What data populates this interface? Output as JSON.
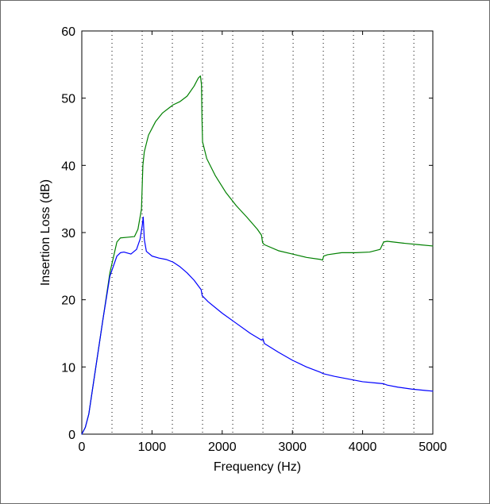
{
  "chart_data": {
    "type": "line",
    "title": "",
    "xlabel": "Frequency (Hz)",
    "ylabel": "Insertion Loss (dB)",
    "xlim": [
      0,
      5000
    ],
    "ylim": [
      0,
      60
    ],
    "xticks": [
      0,
      1000,
      2000,
      3000,
      4000,
      5000
    ],
    "yticks": [
      0,
      10,
      20,
      30,
      40,
      50,
      60
    ],
    "xtick_labels": [
      "0",
      "1000",
      "2000",
      "3000",
      "4000",
      "5000"
    ],
    "ytick_labels": [
      "0",
      "10",
      "20",
      "30",
      "40",
      "50",
      "60"
    ],
    "vertical_dotted_gridlines_x": [
      430,
      860,
      1290,
      1720,
      2150,
      2580,
      3010,
      3440,
      3870,
      4300,
      4730
    ],
    "grid": "vertical dotted lines only",
    "legend": "none",
    "series": [
      {
        "color": "#008000",
        "points": [
          [
            0,
            0
          ],
          [
            50,
            1
          ],
          [
            100,
            3
          ],
          [
            200,
            10
          ],
          [
            300,
            17
          ],
          [
            400,
            24
          ],
          [
            500,
            28.6
          ],
          [
            550,
            29.2
          ],
          [
            650,
            29.3
          ],
          [
            750,
            29.4
          ],
          [
            800,
            30.5
          ],
          [
            850,
            33.5
          ],
          [
            870,
            40
          ],
          [
            890,
            42
          ],
          [
            950,
            44.5
          ],
          [
            1050,
            46.5
          ],
          [
            1150,
            47.8
          ],
          [
            1250,
            48.6
          ],
          [
            1300,
            49
          ],
          [
            1400,
            49.5
          ],
          [
            1500,
            50.3
          ],
          [
            1600,
            51.8
          ],
          [
            1660,
            53
          ],
          [
            1690,
            53.3
          ],
          [
            1705,
            52
          ],
          [
            1712,
            47
          ],
          [
            1720,
            43.5
          ],
          [
            1780,
            41
          ],
          [
            1900,
            38.5
          ],
          [
            2050,
            36
          ],
          [
            2200,
            34
          ],
          [
            2350,
            32.3
          ],
          [
            2500,
            30.5
          ],
          [
            2560,
            29.6
          ],
          [
            2575,
            28.5
          ],
          [
            2600,
            28.2
          ],
          [
            2800,
            27.3
          ],
          [
            3000,
            26.8
          ],
          [
            3200,
            26.3
          ],
          [
            3400,
            26
          ],
          [
            3430,
            25.9
          ],
          [
            3445,
            26.5
          ],
          [
            3500,
            26.7
          ],
          [
            3700,
            27
          ],
          [
            3900,
            27
          ],
          [
            4100,
            27.1
          ],
          [
            4250,
            27.5
          ],
          [
            4300,
            28.6
          ],
          [
            4350,
            28.7
          ],
          [
            4600,
            28.4
          ],
          [
            4800,
            28.2
          ],
          [
            5000,
            28
          ]
        ]
      },
      {
        "color": "#0000ff",
        "points": [
          [
            0,
            0
          ],
          [
            50,
            1
          ],
          [
            100,
            3
          ],
          [
            200,
            10
          ],
          [
            300,
            17
          ],
          [
            400,
            23.5
          ],
          [
            500,
            26.5
          ],
          [
            550,
            27
          ],
          [
            600,
            27.1
          ],
          [
            700,
            26.8
          ],
          [
            780,
            27.5
          ],
          [
            830,
            29
          ],
          [
            860,
            31
          ],
          [
            875,
            32.3
          ],
          [
            890,
            29
          ],
          [
            920,
            27.2
          ],
          [
            1000,
            26.5
          ],
          [
            1100,
            26.2
          ],
          [
            1200,
            26
          ],
          [
            1300,
            25.6
          ],
          [
            1400,
            24.9
          ],
          [
            1500,
            24
          ],
          [
            1600,
            22.9
          ],
          [
            1700,
            21.5
          ],
          [
            1715,
            20.6
          ],
          [
            1800,
            19.7
          ],
          [
            2000,
            18
          ],
          [
            2200,
            16.5
          ],
          [
            2400,
            15
          ],
          [
            2560,
            14
          ],
          [
            2580,
            14.2
          ],
          [
            2600,
            13.5
          ],
          [
            2800,
            12.2
          ],
          [
            3000,
            11
          ],
          [
            3200,
            10
          ],
          [
            3400,
            9.2
          ],
          [
            3440,
            9
          ],
          [
            3600,
            8.6
          ],
          [
            3800,
            8.2
          ],
          [
            4000,
            7.8
          ],
          [
            4200,
            7.6
          ],
          [
            4300,
            7.5
          ],
          [
            4350,
            7.3
          ],
          [
            4500,
            7
          ],
          [
            4700,
            6.7
          ],
          [
            4900,
            6.5
          ],
          [
            5000,
            6.4
          ]
        ]
      }
    ]
  }
}
